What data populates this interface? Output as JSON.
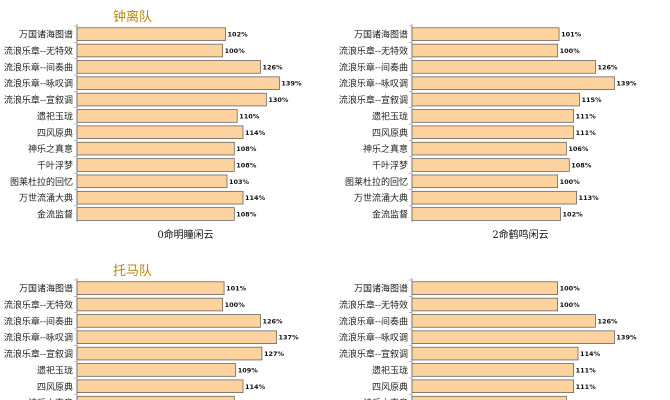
{
  "chart_data": [
    {
      "type": "bar",
      "team": "钟离队",
      "subtitle": "0命明瞳闲云",
      "colors": {
        "bar": "#fcd29e",
        "bar_stroke": "#555555",
        "team_title": "#b8860b"
      },
      "xlim": [
        0,
        160
      ],
      "categories": [
        "万国诸海图谱",
        "流浪乐章--无特效",
        "流浪乐章--间奏曲",
        "流浪乐章--咏叹调",
        "流浪乐章--宣叙调",
        "遗祀玉珑",
        "四风原典",
        "神乐之真意",
        "千叶浮梦",
        "图莱杜拉的回忆",
        "万世流涌大典",
        "金流监督"
      ],
      "values": [
        102,
        100,
        126,
        139,
        130,
        110,
        114,
        108,
        108,
        103,
        114,
        108
      ],
      "labels": [
        "102%",
        "100%",
        "126%",
        "139%",
        "130%",
        "110%",
        "114%",
        "108%",
        "108%",
        "103%",
        "114%",
        "108%"
      ]
    },
    {
      "type": "bar",
      "team": "",
      "subtitle": "2命鹤鸣闲云",
      "colors": {
        "bar": "#fcd29e",
        "bar_stroke": "#555555",
        "team_title": "#b8860b"
      },
      "xlim": [
        0,
        160
      ],
      "categories": [
        "万国诸海图谱",
        "流浪乐章--无特效",
        "流浪乐章--间奏曲",
        "流浪乐章--咏叹调",
        "流浪乐章--宣叙调",
        "遗祀玉珑",
        "四风原典",
        "神乐之真意",
        "千叶浮梦",
        "图莱杜拉的回忆",
        "万世流涌大典",
        "金流监督"
      ],
      "values": [
        101,
        100,
        126,
        139,
        115,
        111,
        111,
        106,
        108,
        100,
        113,
        102
      ],
      "labels": [
        "101%",
        "100%",
        "126%",
        "139%",
        "115%",
        "111%",
        "111%",
        "106%",
        "108%",
        "100%",
        "113%",
        "102%"
      ]
    },
    {
      "type": "bar",
      "team": "托马队",
      "subtitle": "",
      "colors": {
        "bar": "#fcd29e",
        "bar_stroke": "#555555",
        "team_title": "#b8860b"
      },
      "xlim": [
        0,
        160
      ],
      "categories": [
        "万国诸海图谱",
        "流浪乐章--无特效",
        "流浪乐章--间奏曲",
        "流浪乐章--咏叹调",
        "流浪乐章--宣叙调",
        "遗祀玉珑",
        "四风原典",
        "神乐之真意"
      ],
      "values": [
        101,
        100,
        126,
        137,
        127,
        109,
        114,
        108
      ],
      "labels": [
        "101%",
        "100%",
        "126%",
        "137%",
        "127%",
        "109%",
        "114%",
        ""
      ]
    },
    {
      "type": "bar",
      "team": "",
      "subtitle": "",
      "colors": {
        "bar": "#fcd29e",
        "bar_stroke": "#555555",
        "team_title": "#b8860b"
      },
      "xlim": [
        0,
        160
      ],
      "categories": [
        "万国诸海图谱",
        "流浪乐章--无特效",
        "流浪乐章--间奏曲",
        "流浪乐章--咏叹调",
        "流浪乐章--宣叙调",
        "遗祀玉珑",
        "四风原典",
        "神乐之真意"
      ],
      "values": [
        100,
        100,
        126,
        139,
        114,
        111,
        111,
        106
      ],
      "labels": [
        "100%",
        "100%",
        "126%",
        "139%",
        "114%",
        "111%",
        "111%",
        ""
      ]
    }
  ]
}
